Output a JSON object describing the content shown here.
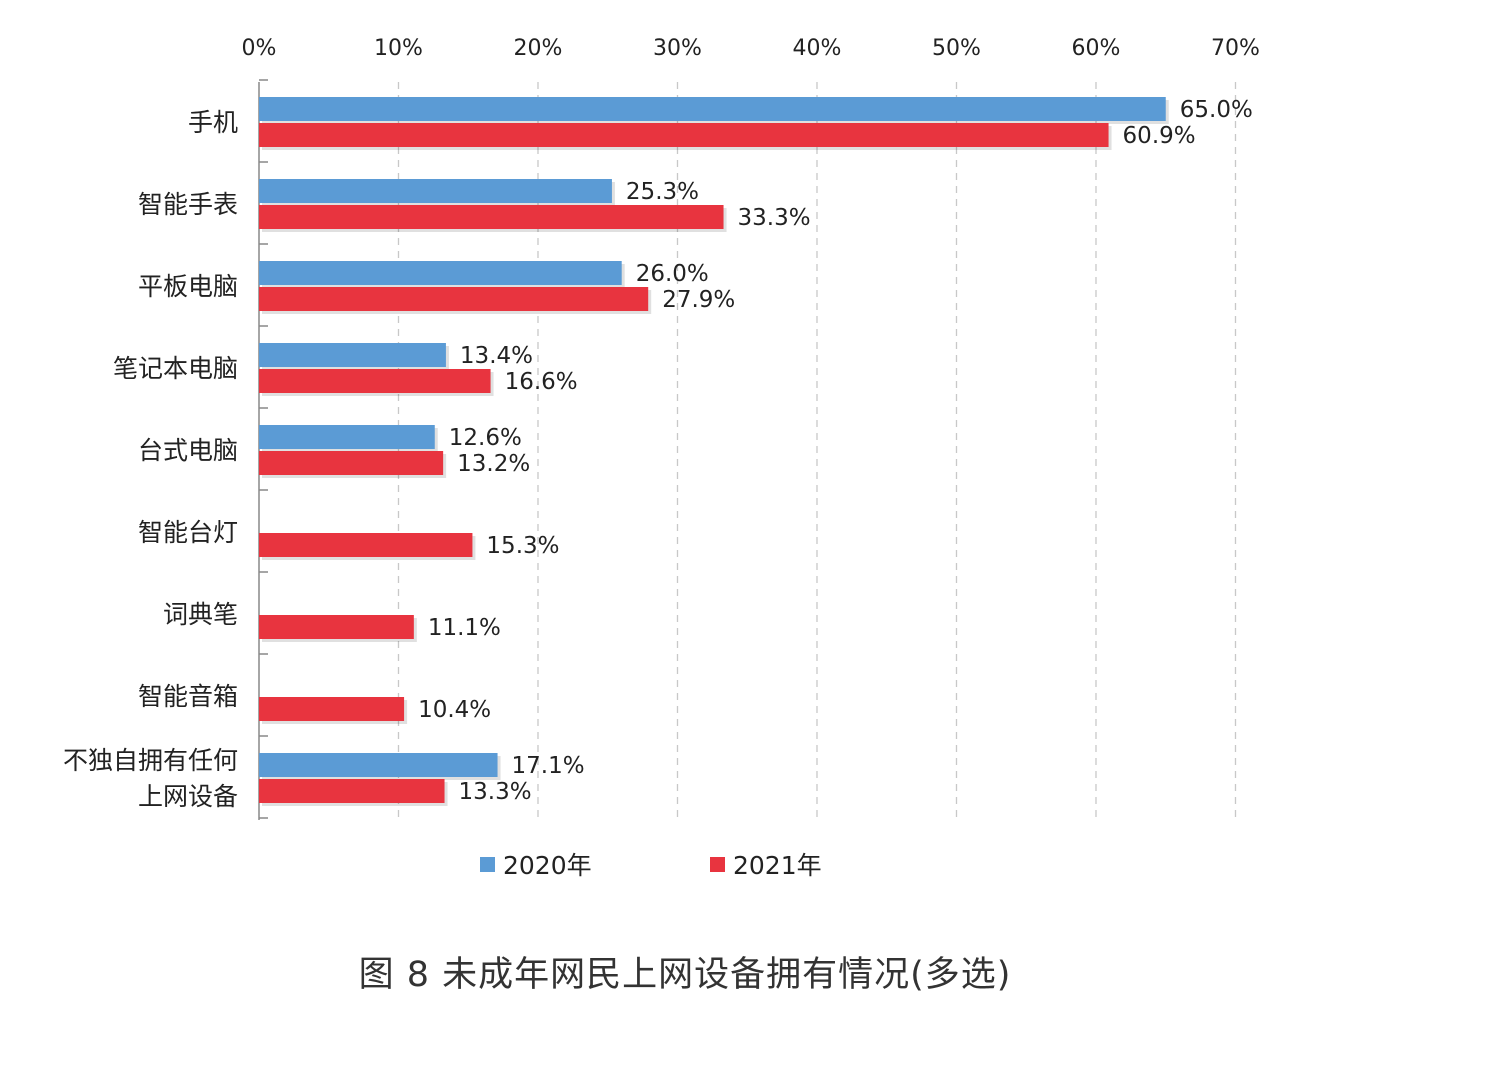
{
  "chart_data": {
    "type": "bar",
    "orientation": "horizontal",
    "title": "",
    "caption": "图 8 未成年网民上网设备拥有情况(多选)",
    "xlim": [
      0,
      70
    ],
    "x_ticks": [
      0,
      10,
      20,
      30,
      40,
      50,
      60,
      70
    ],
    "x_tick_labels": [
      "0%",
      "10%",
      "20%",
      "30%",
      "40%",
      "50%",
      "60%",
      "70%"
    ],
    "x_axis_position": "top",
    "grid": "vertical dashed",
    "categories": [
      [
        "手机"
      ],
      [
        "智能手表"
      ],
      [
        "平板电脑"
      ],
      [
        "笔记本电脑"
      ],
      [
        "台式电脑"
      ],
      [
        "智能台灯"
      ],
      [
        "词典笔"
      ],
      [
        "智能音箱"
      ],
      [
        "不独自拥有任何",
        "上网设备"
      ]
    ],
    "series": [
      {
        "name": "2020年",
        "color": "#5b9bd5",
        "values": [
          65.0,
          25.3,
          26.0,
          13.4,
          12.6,
          null,
          null,
          null,
          17.1
        ],
        "labels": [
          "65.0%",
          "25.3%",
          "26.0%",
          "13.4%",
          "12.6%",
          null,
          null,
          null,
          "17.1%"
        ]
      },
      {
        "name": "2021年",
        "color": "#e8343f",
        "values": [
          60.9,
          33.3,
          27.9,
          16.6,
          13.2,
          15.3,
          11.1,
          10.4,
          13.3
        ],
        "labels": [
          "60.9%",
          "33.3%",
          "27.9%",
          "16.6%",
          "13.2%",
          "15.3%",
          "11.1%",
          "10.4%",
          "13.3%"
        ]
      }
    ],
    "legend": {
      "placement": "bottom",
      "entries": [
        "2020年",
        "2021年"
      ]
    }
  }
}
